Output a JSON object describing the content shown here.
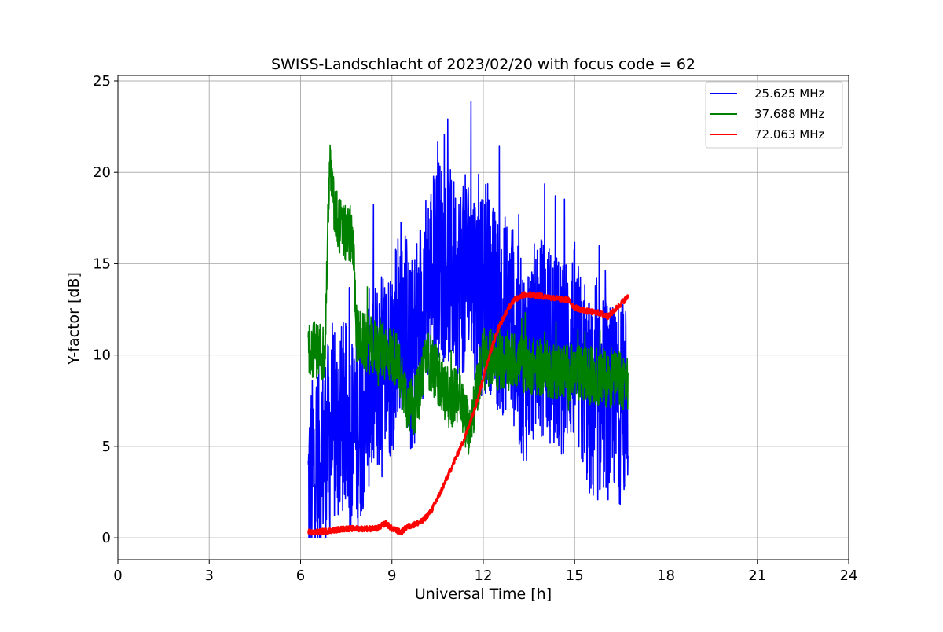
{
  "chart_data": {
    "type": "line",
    "title": "SWISS-Landschlacht of 2023/02/20 with focus code = 62",
    "xlabel": "Universal Time [h]",
    "ylabel": "Y-factor [dB]",
    "xlim": [
      0,
      24
    ],
    "ylim": [
      -1.2,
      25.3
    ],
    "xticks": [
      0,
      3,
      6,
      9,
      12,
      15,
      18,
      21,
      24
    ],
    "yticks": [
      0,
      5,
      10,
      15,
      20,
      25
    ],
    "grid": true,
    "legend_position": "top-right",
    "series": [
      {
        "name": "25.625 MHz",
        "color": "#0000ff",
        "x": [
          6.25,
          6.4,
          6.6,
          6.8,
          7.0,
          7.2,
          7.4,
          7.6,
          7.8,
          8.0,
          8.2,
          8.4,
          8.6,
          8.8,
          9.0,
          9.2,
          9.4,
          9.6,
          9.8,
          10.0,
          10.2,
          10.4,
          10.6,
          10.8,
          11.0,
          11.2,
          11.4,
          11.6,
          11.8,
          12.0,
          12.2,
          12.4,
          12.6,
          12.8,
          13.0,
          13.2,
          13.4,
          13.6,
          13.8,
          14.0,
          14.2,
          14.4,
          14.6,
          14.8,
          15.0,
          15.2,
          15.4,
          15.6,
          15.8,
          16.0,
          16.2,
          16.4,
          16.6,
          16.75
        ],
        "y": [
          2.5,
          3.5,
          4.5,
          5.0,
          5.5,
          6.0,
          6.5,
          6.0,
          5.5,
          6.5,
          8.0,
          8.5,
          9.0,
          9.5,
          10.0,
          12.0,
          12.5,
          9.5,
          11.0,
          13.0,
          14.0,
          15.0,
          15.5,
          15.0,
          14.5,
          14.0,
          14.5,
          15.0,
          13.5,
          13.0,
          13.5,
          12.5,
          12.0,
          12.5,
          11.5,
          10.0,
          9.5,
          10.5,
          11.0,
          11.0,
          10.5,
          10.0,
          9.5,
          10.5,
          10.5,
          9.0,
          8.0,
          7.0,
          7.5,
          8.0,
          7.0,
          7.5,
          7.0,
          8.0
        ],
        "noise_amplitude": 5.5
      },
      {
        "name": "37.688 MHz",
        "color": "#008000",
        "x": [
          6.25,
          6.5,
          6.8,
          6.95,
          7.1,
          7.3,
          7.5,
          7.7,
          7.85,
          8.0,
          8.3,
          8.6,
          8.9,
          9.1,
          9.3,
          9.5,
          9.7,
          9.9,
          10.1,
          10.3,
          10.6,
          10.9,
          11.2,
          11.5,
          11.8,
          12.0,
          12.3,
          12.6,
          13.0,
          13.4,
          13.8,
          14.2,
          14.6,
          15.0,
          15.4,
          15.8,
          16.2,
          16.5,
          16.75
        ],
        "y": [
          10.4,
          10.3,
          10.2,
          20.5,
          18.0,
          17.0,
          16.5,
          16.8,
          11.0,
          10.8,
          10.5,
          10.3,
          10.1,
          9.9,
          9.0,
          7.5,
          7.0,
          8.0,
          10.0,
          9.5,
          8.5,
          7.5,
          8.0,
          6.0,
          8.0,
          10.0,
          9.8,
          9.6,
          9.7,
          9.5,
          9.3,
          9.2,
          9.1,
          9.0,
          8.9,
          8.8,
          8.7,
          8.6,
          8.6
        ],
        "noise_amplitude": 1.6
      },
      {
        "name": "72.063 MHz",
        "color": "#ff0000",
        "x": [
          6.25,
          6.5,
          7.0,
          7.5,
          8.0,
          8.5,
          8.8,
          9.0,
          9.3,
          9.5,
          9.7,
          10.0,
          10.3,
          10.6,
          11.0,
          11.4,
          11.8,
          12.2,
          12.5,
          12.8,
          13.0,
          13.3,
          13.6,
          14.0,
          14.4,
          14.8,
          15.0,
          15.4,
          15.8,
          16.1,
          16.4,
          16.75
        ],
        "y": [
          0.3,
          0.3,
          0.4,
          0.5,
          0.5,
          0.5,
          0.8,
          0.5,
          0.3,
          0.6,
          0.7,
          0.9,
          1.5,
          2.5,
          4.0,
          5.5,
          7.5,
          10.0,
          11.5,
          12.5,
          13.0,
          13.3,
          13.3,
          13.2,
          13.1,
          13.0,
          12.6,
          12.4,
          12.3,
          12.1,
          12.6,
          13.2
        ],
        "noise_amplitude": 0.15
      }
    ]
  }
}
